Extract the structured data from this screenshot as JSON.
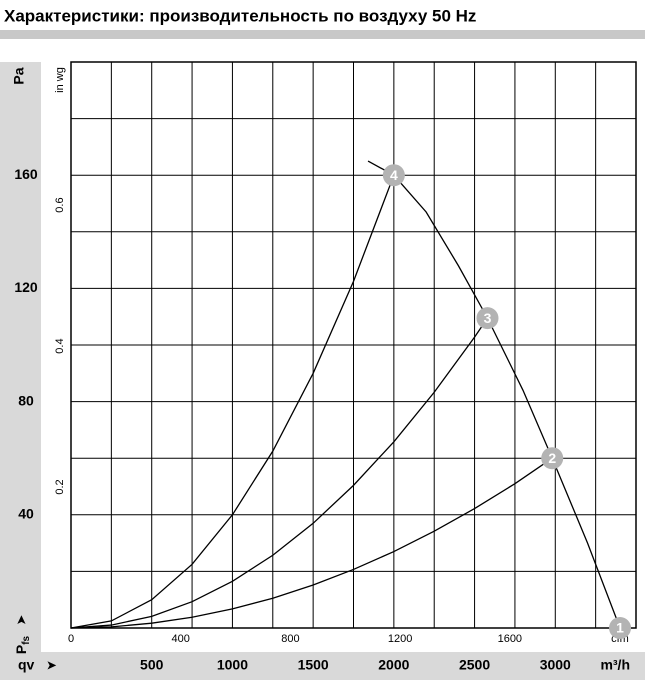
{
  "chart_data": {
    "type": "line",
    "title": "Характеристики: производительность по воздуху 50 Hz",
    "ylabel": "Pa",
    "y2label": "in wg",
    "ylabel_symbol": "P",
    "ylabel_subscript": "fs",
    "xlabel": "qv",
    "xunit": "m³/h",
    "x2unit": "cfm",
    "xlim": [
      0,
      3500
    ],
    "ylim": [
      0,
      200
    ],
    "x2lim": [
      0,
      2060
    ],
    "y2lim": [
      0,
      0.803
    ],
    "xticks": [
      500,
      1000,
      1500,
      2000,
      2500,
      3000
    ],
    "yticks": [
      40,
      80,
      120,
      160
    ],
    "x2ticks": [
      0,
      400,
      800,
      1200,
      1600
    ],
    "y2ticks": [
      0.2,
      0.4,
      0.6
    ],
    "xgrid": [
      250,
      500,
      750,
      1000,
      1250,
      1500,
      1750,
      2000,
      2250,
      2500,
      2750,
      3000,
      3250
    ],
    "ygrid": [
      20,
      40,
      60,
      80,
      100,
      120,
      140,
      160,
      180
    ],
    "series": [
      {
        "color": "#000000",
        "x": [
          1840,
          2000,
          2200,
          2400,
          2580,
          2800,
          2981,
          3200,
          3401
        ],
        "values": [
          165,
          160,
          147,
          128,
          109.5,
          84,
          60,
          30,
          0
        ]
      },
      {
        "color": "#000000",
        "x": [
          0,
          250,
          500,
          750,
          1000,
          1250,
          1500,
          1750,
          2000
        ],
        "values": [
          0,
          2.5,
          10,
          22.5,
          40,
          62.5,
          90,
          122.5,
          160
        ]
      },
      {
        "color": "#000000",
        "x": [
          0,
          250,
          500,
          750,
          1000,
          1250,
          1500,
          1750,
          2000,
          2250,
          2500,
          2580
        ],
        "values": [
          0,
          1.03,
          4.1,
          9.3,
          16.5,
          25.7,
          37,
          50.4,
          65.8,
          83.3,
          102.8,
          109.5
        ]
      },
      {
        "color": "#000000",
        "x": [
          0,
          250,
          500,
          750,
          1000,
          1250,
          1500,
          1750,
          2000,
          2250,
          2500,
          2750,
          2981
        ],
        "values": [
          0,
          0.4,
          1.7,
          3.8,
          6.75,
          10.5,
          15.2,
          20.7,
          27,
          34.2,
          42.2,
          51,
          60
        ]
      }
    ],
    "points": {
      "color": "#b3b3b3",
      "x": [
        3401,
        2981,
        2580,
        2000
      ],
      "values": [
        0,
        60,
        109.5,
        160
      ],
      "labels": [
        "1",
        "2",
        "3",
        "4"
      ]
    }
  }
}
